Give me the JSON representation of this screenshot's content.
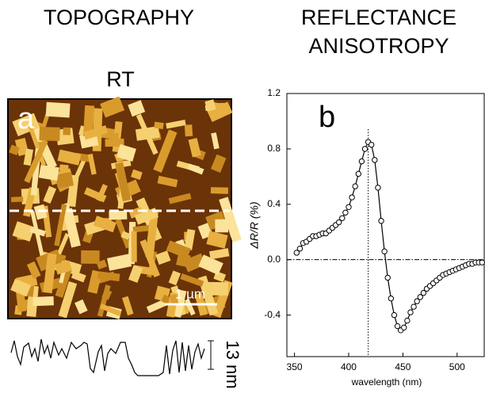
{
  "header": {
    "left_title": "TOPOGRAPHY",
    "right_title_line1": "REFLECTANCE",
    "right_title_line2": "ANISOTROPY"
  },
  "image": {
    "condition": "RT",
    "panel_label": "a",
    "scale_bar": "1 µm",
    "profile_height": "13 nm"
  },
  "chart_data": {
    "type": "scatter",
    "title": "b",
    "x_label": "wavelength (nm)",
    "y_label": "ΔR/R (%)",
    "xlim": [
      343,
      525
    ],
    "ylim": [
      -0.7,
      1.2
    ],
    "xticks": [
      350,
      400,
      450,
      500
    ],
    "yticks": [
      -0.4,
      {
        "value": 0,
        "label": "0.0"
      },
      0.4,
      0.8,
      1.2
    ],
    "vline": 418,
    "hline": 0,
    "series": [
      {
        "color": "#000000",
        "x": [
          352,
          355,
          358,
          361,
          364,
          367,
          370,
          373,
          376,
          379,
          382,
          385,
          388,
          391,
          394,
          397,
          400,
          403,
          406,
          409,
          412,
          415,
          418,
          421,
          424,
          427,
          430,
          433,
          436,
          439,
          442,
          445,
          448,
          451,
          454,
          457,
          460,
          463,
          466,
          469,
          472,
          475,
          478,
          481,
          484,
          487,
          490,
          493,
          496,
          499,
          502,
          505,
          508,
          511,
          514,
          517,
          520,
          523
        ],
        "values": [
          0.05,
          0.08,
          0.12,
          0.13,
          0.15,
          0.17,
          0.17,
          0.18,
          0.19,
          0.19,
          0.21,
          0.23,
          0.25,
          0.27,
          0.3,
          0.34,
          0.38,
          0.45,
          0.53,
          0.62,
          0.71,
          0.8,
          0.85,
          0.83,
          0.72,
          0.52,
          0.28,
          0.06,
          -0.13,
          -0.28,
          -0.4,
          -0.48,
          -0.51,
          -0.49,
          -0.44,
          -0.38,
          -0.34,
          -0.3,
          -0.27,
          -0.24,
          -0.21,
          -0.19,
          -0.17,
          -0.15,
          -0.13,
          -0.11,
          -0.1,
          -0.09,
          -0.08,
          -0.07,
          -0.06,
          -0.05,
          -0.04,
          -0.03,
          -0.03,
          -0.02,
          -0.02,
          -0.02
        ]
      }
    ]
  }
}
